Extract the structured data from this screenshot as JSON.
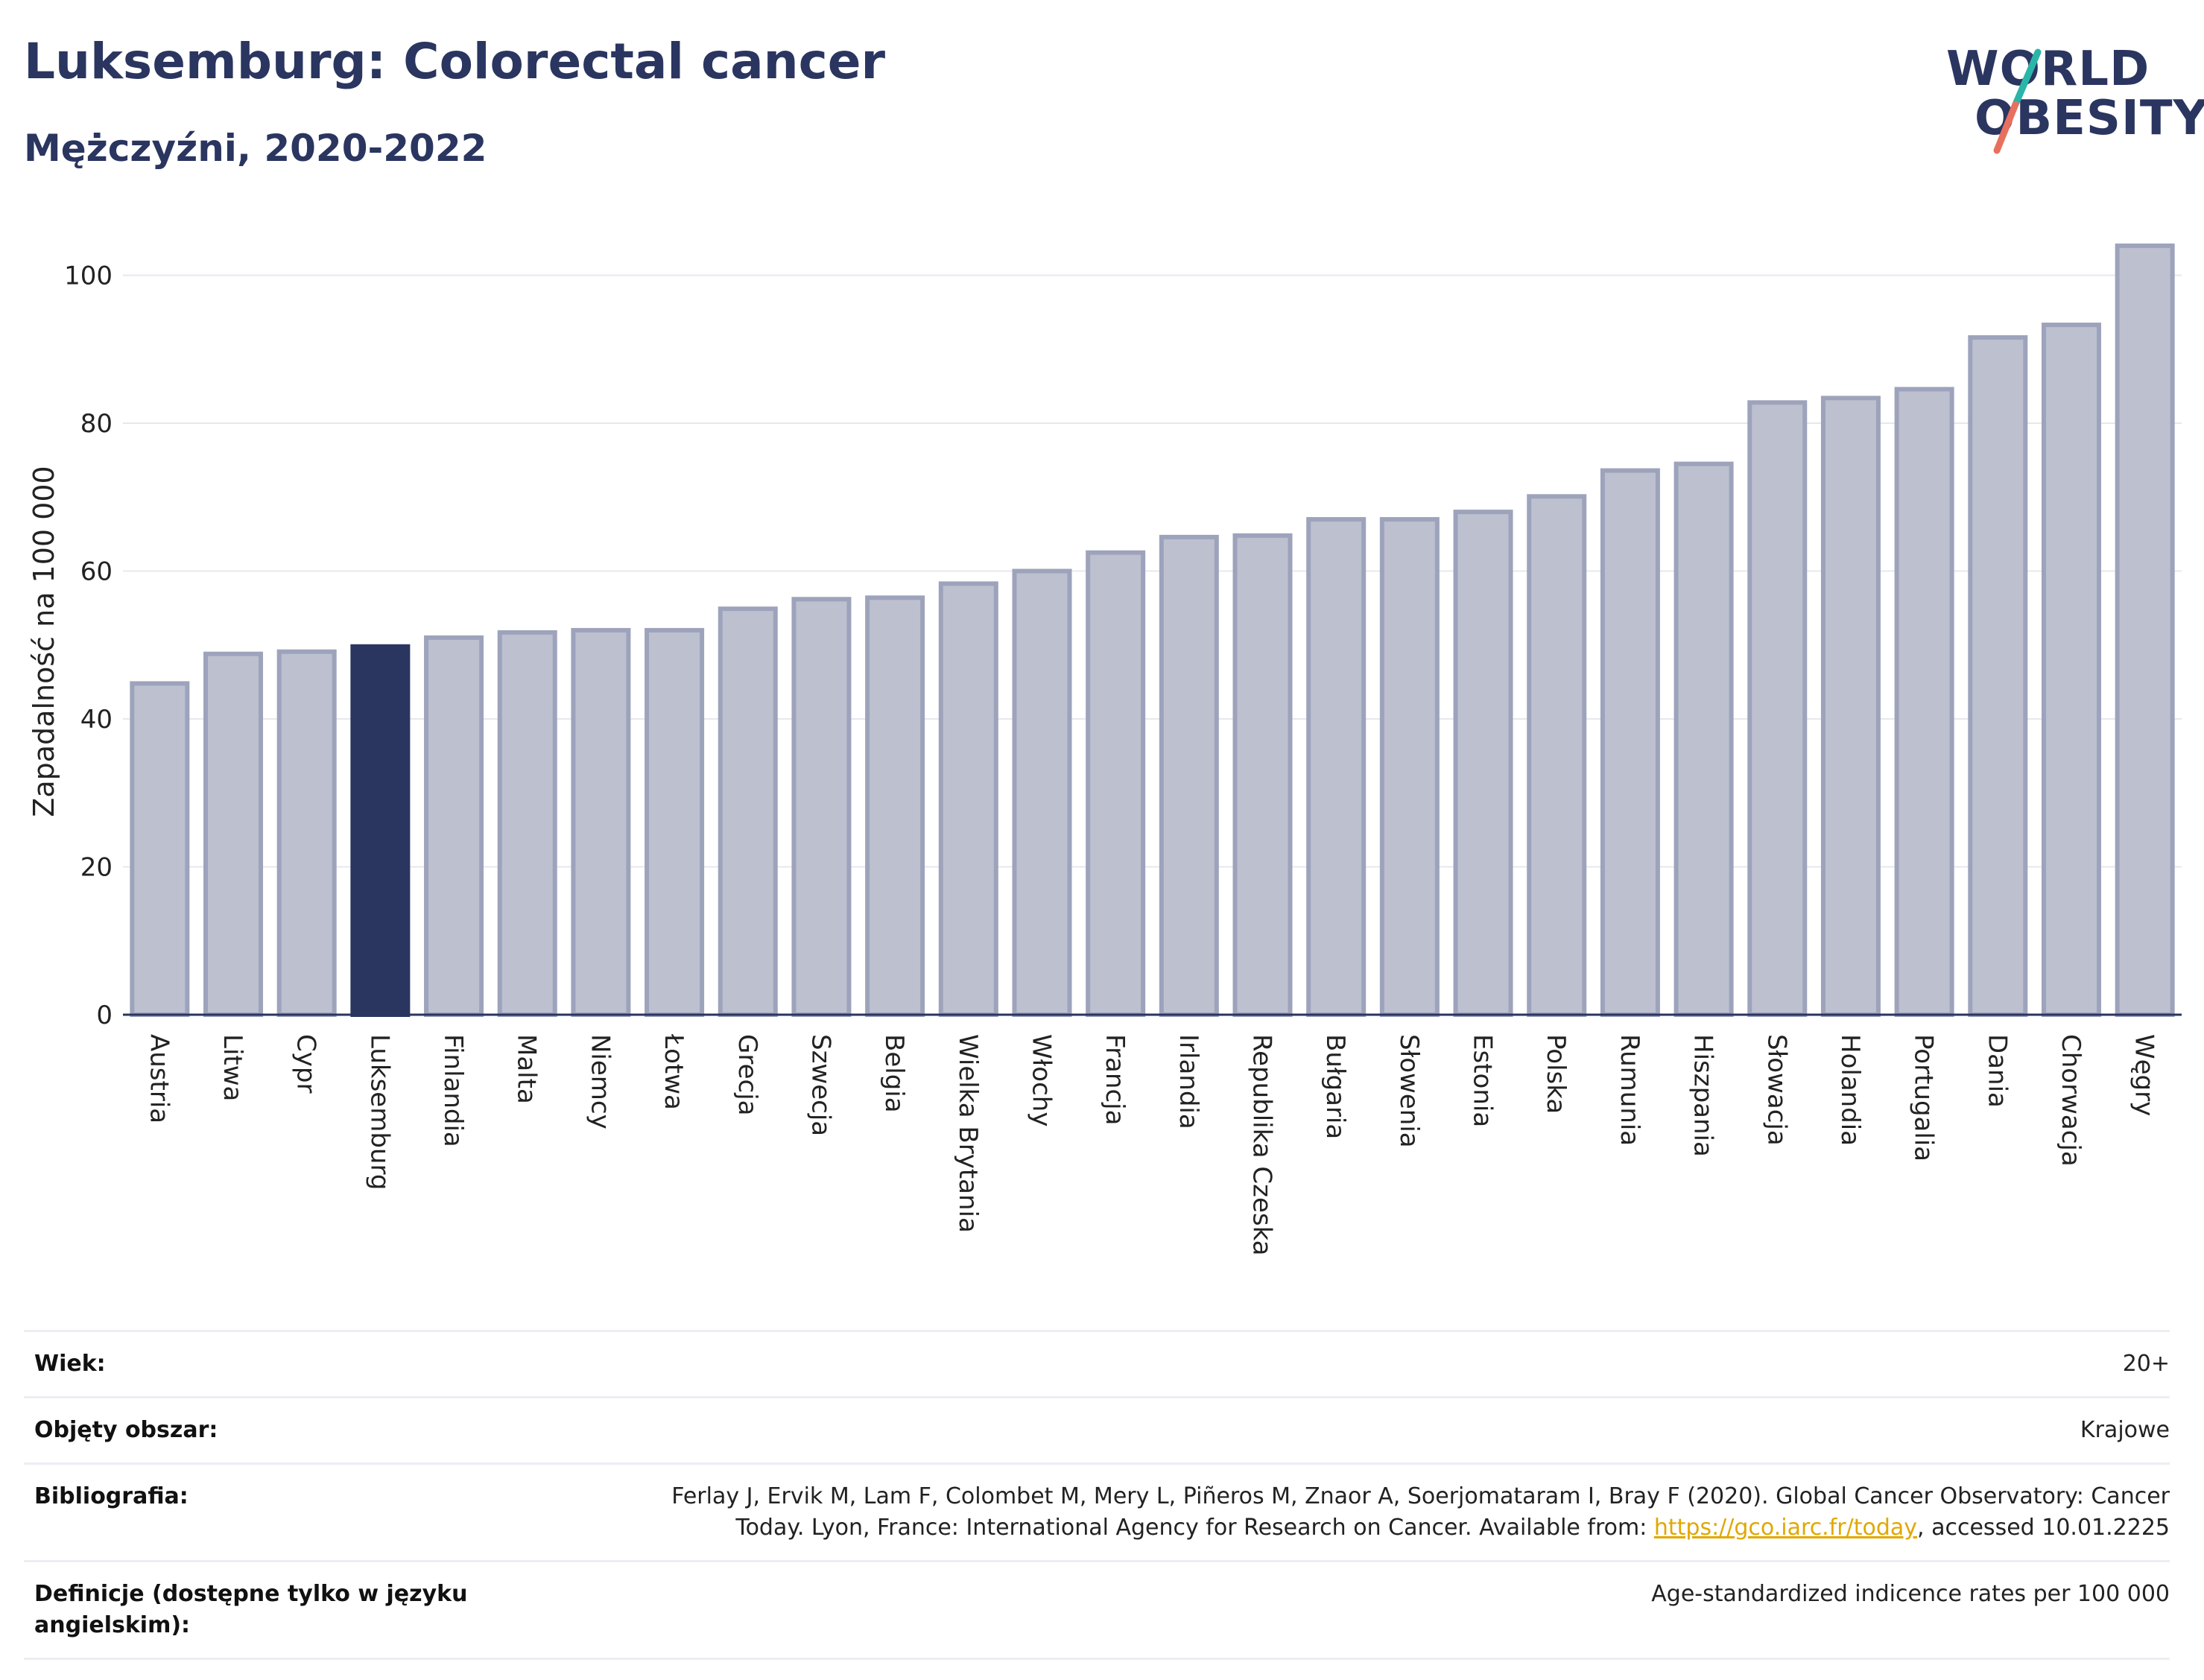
{
  "header": {
    "title": "Luksemburg: Colorectal cancer",
    "subtitle": "Mężczyźni, 2020-2022"
  },
  "logo": {
    "line1": "WORLD",
    "line2": "OBESITY",
    "slash_colors": [
      "#2bb5a8",
      "#e8705f"
    ]
  },
  "colors": {
    "bar": "#bdc0cf",
    "bar_border": "#9ea3bc",
    "highlight": "#2a3560",
    "grid": "#e6e8ef",
    "axis": "#2a3560"
  },
  "chart_data": {
    "type": "bar",
    "title": "",
    "ylabel": "Zapadalność na 100 000",
    "xlabel": "",
    "ylim": [
      0,
      106
    ],
    "yticks": [
      0,
      20,
      40,
      60,
      80,
      100
    ],
    "grid": true,
    "highlight": "Luksemburg",
    "categories": [
      "Austria",
      "Litwa",
      "Cypr",
      "Luksemburg",
      "Finlandia",
      "Malta",
      "Niemcy",
      "Łotwa",
      "Grecja",
      "Szwecja",
      "Belgia",
      "Wielka Brytania",
      "Włochy",
      "Francja",
      "Irlandia",
      "Republika Czeska",
      "Bułgaria",
      "Słowenia",
      "Estonia",
      "Polska",
      "Rumunia",
      "Hiszpania",
      "Słowacja",
      "Holandia",
      "Portugalia",
      "Dania",
      "Chorwacja",
      "Węgry"
    ],
    "values": [
      44.8,
      48.8,
      49.1,
      49.8,
      51.0,
      51.7,
      52.0,
      52.0,
      54.9,
      56.2,
      56.4,
      58.3,
      60.0,
      62.5,
      64.6,
      64.8,
      67.0,
      67.0,
      68.0,
      70.1,
      73.6,
      74.5,
      82.8,
      83.4,
      84.6,
      91.6,
      93.3,
      104.0
    ]
  },
  "meta": [
    {
      "key": "Wiek:",
      "value": "20+"
    },
    {
      "key": "Objęty obszar:",
      "value": "Krajowe"
    },
    {
      "key": "Bibliografia:",
      "value_line1": "Ferlay J, Ervik M, Lam F, Colombet M, Mery L, Piñeros M, Znaor A, Soerjomataram I, Bray F (2020). Global Cancer Observatory: Cancer",
      "value_pre": "Today. Lyon, France: International Agency for Research on Cancer. Available from: ",
      "link": "https://gco.iarc.fr/today",
      "value_post": ", accessed 10.01.2225"
    },
    {
      "key": "Definicje (dostępne tylko w języku angielskim):",
      "value": "Age-standardized indicence rates per 100 000"
    }
  ]
}
